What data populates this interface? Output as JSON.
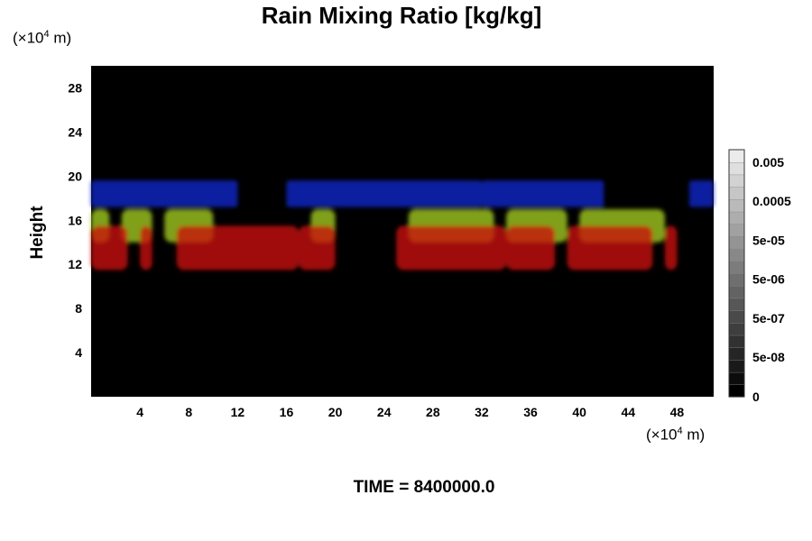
{
  "title": "Rain Mixing Ratio [kg/kg]",
  "y_unit": {
    "prefix": "(×10",
    "exp": "4",
    "suffix": " m)"
  },
  "x_unit": {
    "prefix": "(×10",
    "exp": "4",
    "suffix": " m)"
  },
  "time_label": "TIME = 8400000.0",
  "chart_data": {
    "type": "heatmap",
    "title": "Rain Mixing Ratio [kg/kg]",
    "ylabel": "Height",
    "xlabel": "",
    "xlim": [
      0,
      51
    ],
    "ylim": [
      0,
      30
    ],
    "x_ticks": [
      4,
      8,
      12,
      16,
      20,
      24,
      28,
      32,
      36,
      40,
      44,
      48
    ],
    "y_ticks": [
      4,
      8,
      12,
      16,
      20,
      24,
      28
    ],
    "background": "#000000",
    "layers": [
      {
        "color": "#1428c8",
        "y_range": [
          17.2,
          19.6
        ],
        "extents": [
          [
            0,
            12
          ],
          [
            16,
            32
          ],
          [
            32,
            42
          ],
          [
            49,
            51
          ]
        ]
      },
      {
        "color": "#a0c81e",
        "y_range": [
          14,
          17
        ],
        "blobs": [
          [
            0,
            1.5
          ],
          [
            2.5,
            5
          ],
          [
            6,
            10
          ],
          [
            18,
            20
          ],
          [
            26,
            33
          ],
          [
            34,
            39
          ],
          [
            40,
            47
          ]
        ]
      },
      {
        "color": "#c8140a",
        "y_range": [
          11.5,
          15.5
        ],
        "blobs": [
          [
            0,
            3
          ],
          [
            4,
            5
          ],
          [
            7,
            17
          ],
          [
            17,
            20
          ],
          [
            25,
            34
          ],
          [
            34,
            38
          ],
          [
            39,
            46
          ],
          [
            47,
            48
          ]
        ]
      }
    ],
    "colorbar": {
      "labels": [
        "0.005",
        "0.0005",
        "5e-05",
        "5e-06",
        "5e-07",
        "5e-08",
        "0"
      ]
    }
  }
}
